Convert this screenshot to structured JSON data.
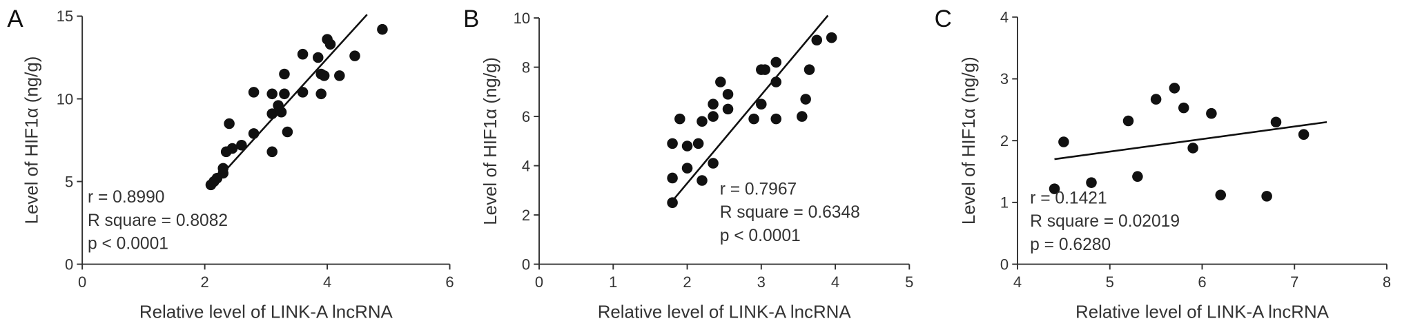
{
  "chart_data": [
    {
      "type": "scatter",
      "panel_label": "A",
      "xlabel": "Relative level of LINK-A lncRNA",
      "ylabel": "Level of HIF1α (ng/g)",
      "xlim": [
        0,
        6
      ],
      "ylim": [
        0,
        15
      ],
      "xticks": [
        0,
        2,
        4,
        6
      ],
      "yticks": [
        0,
        5,
        10,
        15
      ],
      "annotations": [
        "r = 0.8990",
        "R square = 0.8082",
        "p < 0.0001"
      ],
      "series": [
        {
          "color": "#111111",
          "x": [
            2.1,
            2.15,
            2.2,
            2.3,
            2.3,
            2.35,
            2.4,
            2.45,
            2.6,
            2.8,
            2.8,
            3.1,
            3.1,
            3.1,
            3.2,
            3.25,
            3.3,
            3.3,
            3.35,
            3.6,
            3.6,
            3.85,
            3.9,
            3.9,
            3.95,
            4.0,
            4.05,
            4.2,
            4.45,
            4.9
          ],
          "values": [
            4.8,
            5.0,
            5.2,
            5.5,
            5.8,
            6.8,
            8.5,
            7.0,
            7.2,
            7.9,
            10.4,
            6.8,
            9.1,
            10.3,
            9.6,
            9.2,
            11.5,
            10.3,
            8.0,
            10.4,
            12.7,
            12.5,
            11.5,
            10.3,
            11.4,
            13.6,
            13.3,
            11.4,
            12.6,
            14.2
          ]
        }
      ],
      "fit_line": {
        "x": [
          2.1,
          4.65
        ],
        "values": [
          4.7,
          15.1
        ]
      }
    },
    {
      "type": "scatter",
      "panel_label": "B",
      "xlabel": "Relative level of LINK-A lncRNA",
      "ylabel": "Level of HIF1α (ng/g)",
      "xlim": [
        0,
        5
      ],
      "ylim": [
        0,
        10
      ],
      "xticks": [
        0,
        1,
        2,
        3,
        4,
        5
      ],
      "yticks": [
        0,
        2,
        4,
        6,
        8,
        10
      ],
      "annotations": [
        "r = 0.7967",
        "R square = 0.6348",
        "p < 0.0001"
      ],
      "series": [
        {
          "color": "#111111",
          "x": [
            1.8,
            1.8,
            1.8,
            1.9,
            2.0,
            2.0,
            2.15,
            2.2,
            2.2,
            2.35,
            2.35,
            2.35,
            2.45,
            2.55,
            2.55,
            2.9,
            3.0,
            3.0,
            3.05,
            3.2,
            3.2,
            3.2,
            3.55,
            3.6,
            3.65,
            3.75,
            3.95
          ],
          "values": [
            2.5,
            3.5,
            4.9,
            5.9,
            3.9,
            4.8,
            4.9,
            3.4,
            5.8,
            4.1,
            6.0,
            6.5,
            7.4,
            6.9,
            6.3,
            5.9,
            7.9,
            6.5,
            7.9,
            7.4,
            8.2,
            5.9,
            6.0,
            6.7,
            7.9,
            9.1,
            9.2
          ]
        }
      ],
      "fit_line": {
        "x": [
          1.78,
          3.9
        ],
        "values": [
          2.5,
          10.1
        ]
      }
    },
    {
      "type": "scatter",
      "panel_label": "C",
      "xlabel": "Relative level of LINK-A lncRNA",
      "ylabel": "Level of HIF1α (ng/g)",
      "xlim": [
        4,
        8
      ],
      "ylim": [
        0,
        4
      ],
      "xticks": [
        4,
        5,
        6,
        7,
        8
      ],
      "yticks": [
        0,
        1,
        2,
        3,
        4
      ],
      "annotations": [
        "r = 0.1421",
        "R square = 0.02019",
        "p = 0.6280"
      ],
      "series": [
        {
          "color": "#111111",
          "x": [
            4.4,
            4.5,
            4.8,
            5.2,
            5.3,
            5.5,
            5.7,
            5.8,
            5.9,
            6.1,
            6.2,
            6.7,
            6.8,
            7.1
          ],
          "values": [
            1.22,
            1.98,
            1.32,
            2.32,
            1.42,
            2.67,
            2.85,
            2.53,
            1.88,
            2.44,
            1.12,
            1.1,
            2.3,
            2.1
          ]
        }
      ],
      "fit_line": {
        "x": [
          4.4,
          7.35
        ],
        "values": [
          1.7,
          2.3
        ]
      }
    }
  ]
}
